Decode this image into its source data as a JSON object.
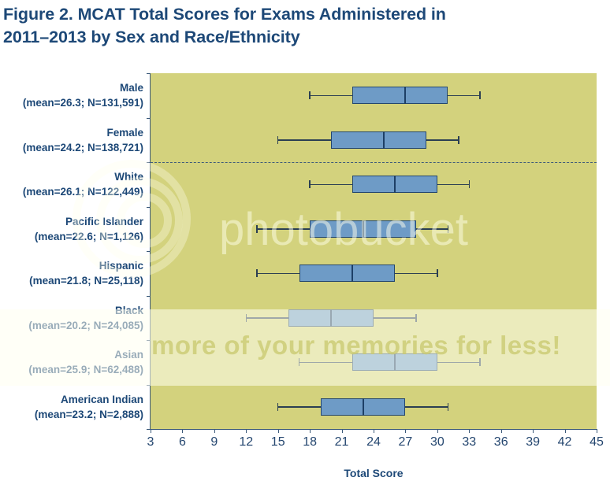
{
  "title_line1": "Figure 2. MCAT Total Scores for Exams Administered in",
  "title_line2": "2011–2013 by Sex and Race/Ethnicity",
  "x_axis_title": "Total Score",
  "x_ticks": [
    "3",
    "6",
    "9",
    "12",
    "15",
    "18",
    "21",
    "24",
    "27",
    "30",
    "33",
    "36",
    "39",
    "42",
    "45"
  ],
  "rows": [
    {
      "name": "Male",
      "stats": "(mean=26.3; N=131,591)"
    },
    {
      "name": "Female",
      "stats": "(mean=24.2; N=138,721)"
    },
    {
      "name": "White",
      "stats": "(mean=26.1; N=122,449)"
    },
    {
      "name": "Pacific Islander",
      "stats": "(mean=22.6; N=1,126)"
    },
    {
      "name": "Hispanic",
      "stats": "(mean=21.8; N=25,118)"
    },
    {
      "name": "Black",
      "stats": "(mean=20.2; N=24,085)"
    },
    {
      "name": "Asian",
      "stats": "(mean=25.9; N=62,488)"
    },
    {
      "name": "American Indian",
      "stats": "(mean=23.2; N=2,888)"
    }
  ],
  "watermark": {
    "brand": "photobucket",
    "tagline": "more of your memories for less!"
  },
  "colors": {
    "plot_bg": "#d3d27d",
    "box_fill": "#6e9bc6",
    "box_border": "#24476e",
    "text": "#1d4877"
  },
  "chart_data": {
    "type": "boxplot",
    "orientation": "horizontal",
    "title": "Figure 2. MCAT Total Scores for Exams Administered in 2011–2013 by Sex and Race/Ethnicity",
    "xlabel": "Total Score",
    "ylabel": "",
    "xlim": [
      3,
      45
    ],
    "x_tick_step": 3,
    "grid": false,
    "group_separator_after": "Female",
    "categories": [
      "Male",
      "Female",
      "White",
      "Pacific Islander",
      "Hispanic",
      "Black",
      "Asian",
      "American Indian"
    ],
    "series": [
      {
        "name": "Male",
        "mean": 26.3,
        "n": 131591,
        "whisker_low": 18,
        "q1": 22,
        "median": 27,
        "q3": 31,
        "whisker_high": 34
      },
      {
        "name": "Female",
        "mean": 24.2,
        "n": 138721,
        "whisker_low": 15,
        "q1": 20,
        "median": 25,
        "q3": 29,
        "whisker_high": 32
      },
      {
        "name": "White",
        "mean": 26.1,
        "n": 122449,
        "whisker_low": 18,
        "q1": 22,
        "median": 26,
        "q3": 30,
        "whisker_high": 33
      },
      {
        "name": "Pacific Islander",
        "mean": 22.6,
        "n": 1126,
        "whisker_low": 13,
        "q1": 18,
        "median": 23,
        "q3": 28,
        "whisker_high": 31
      },
      {
        "name": "Hispanic",
        "mean": 21.8,
        "n": 25118,
        "whisker_low": 13,
        "q1": 17,
        "median": 22,
        "q3": 26,
        "whisker_high": 30
      },
      {
        "name": "Black",
        "mean": 20.2,
        "n": 24085,
        "whisker_low": 12,
        "q1": 16,
        "median": 20,
        "q3": 24,
        "whisker_high": 28
      },
      {
        "name": "Asian",
        "mean": 25.9,
        "n": 62488,
        "whisker_low": 17,
        "q1": 22,
        "median": 26,
        "q3": 30,
        "whisker_high": 34
      },
      {
        "name": "American Indian",
        "mean": 23.2,
        "n": 2888,
        "whisker_low": 15,
        "q1": 19,
        "median": 23,
        "q3": 27,
        "whisker_high": 31
      }
    ]
  }
}
